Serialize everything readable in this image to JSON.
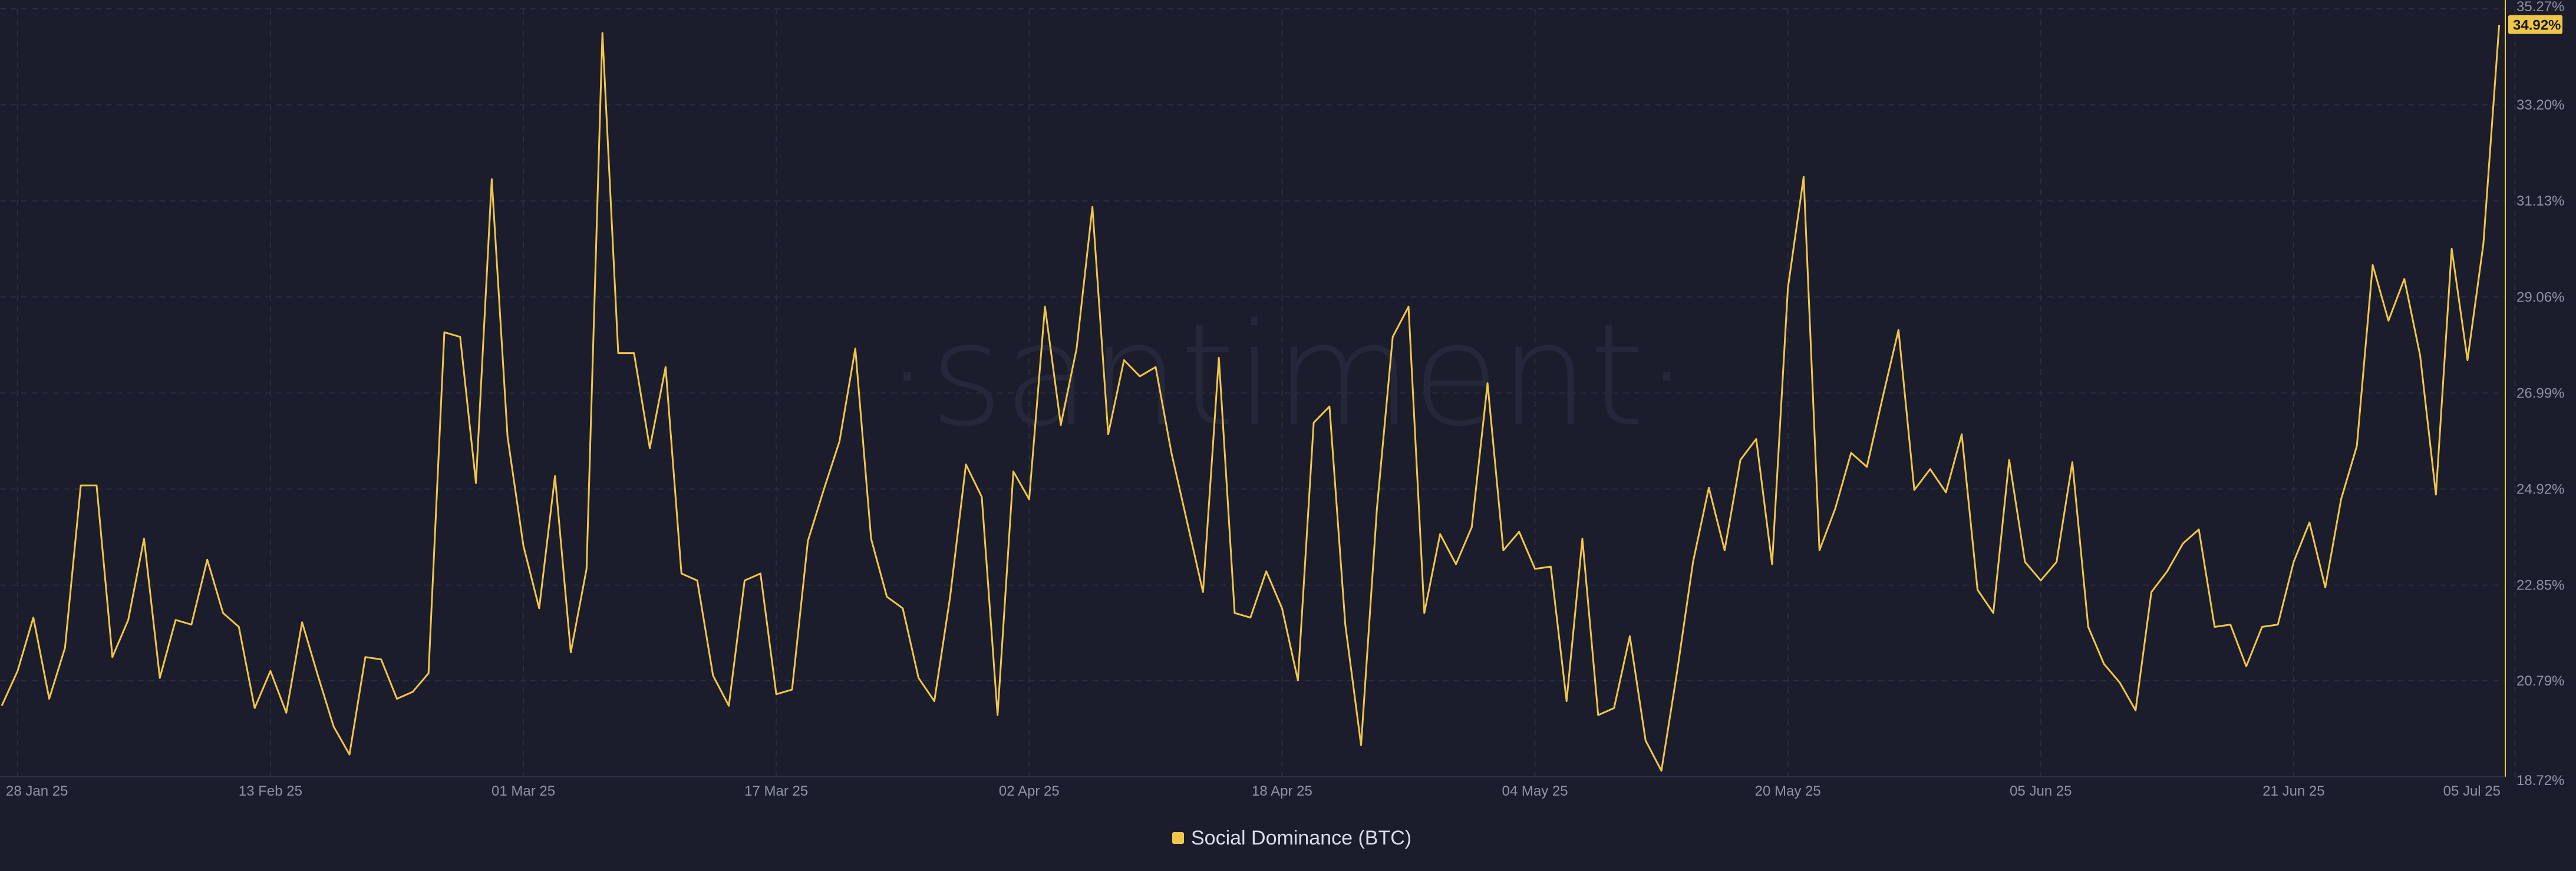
{
  "watermark": "·santiment·",
  "legend": {
    "label": "Social Dominance (BTC)"
  },
  "colors": {
    "background": "#1b1d2c",
    "line": "#f0c64a",
    "grid": "#2a2d40",
    "axis_text": "#8d93a8"
  },
  "chart_data": {
    "type": "line",
    "title": "",
    "xlabel": "",
    "ylabel": "",
    "grid": true,
    "legend_position": "bottom-center",
    "y_axis_side": "right",
    "ylim": [
      18.72,
      35.27
    ],
    "y_ticks": [
      "18.72%",
      "20.79%",
      "22.85%",
      "24.92%",
      "26.99%",
      "29.06%",
      "31.13%",
      "33.20%",
      "35.27%"
    ],
    "x_ticks": [
      "28 Jan 25",
      "13 Feb 25",
      "01 Mar 25",
      "17 Mar 25",
      "02 Apr 25",
      "18 Apr 25",
      "04 May 25",
      "20 May 25",
      "05 Jun 25",
      "21 Jun 25",
      "05 Jul 25"
    ],
    "x_start": "2025-01-27",
    "last_value_label": "34.92%",
    "series": [
      {
        "name": "Social Dominance (BTC)",
        "values": [
          20.25,
          21.0,
          22.15,
          20.4,
          21.5,
          25.0,
          25.0,
          21.3,
          22.1,
          23.85,
          20.85,
          22.1,
          22.0,
          23.4,
          22.25,
          21.95,
          20.2,
          21.0,
          20.1,
          22.05,
          20.9,
          19.8,
          19.2,
          21.3,
          21.25,
          20.4,
          20.55,
          20.95,
          28.3,
          28.2,
          25.05,
          31.6,
          26.05,
          23.7,
          22.35,
          25.2,
          21.4,
          23.2,
          34.75,
          27.85,
          27.85,
          25.8,
          27.55,
          23.1,
          22.95,
          20.9,
          20.25,
          22.95,
          23.1,
          20.5,
          20.6,
          23.8,
          24.9,
          25.95,
          27.95,
          23.85,
          22.6,
          22.35,
          20.85,
          20.35,
          22.6,
          25.45,
          24.75,
          20.05,
          25.3,
          24.7,
          28.85,
          26.3,
          27.95,
          31.0,
          26.1,
          27.7,
          27.35,
          27.55,
          25.7,
          24.2,
          22.7,
          27.75,
          22.25,
          22.15,
          23.15,
          22.35,
          20.8,
          26.35,
          26.7,
          22.0,
          19.4,
          24.5,
          28.2,
          28.85,
          22.25,
          23.95,
          23.3,
          24.1,
          27.2,
          23.6,
          24.0,
          23.2,
          23.25,
          20.35,
          23.85,
          20.05,
          20.2,
          21.75,
          19.5,
          18.85,
          21.0,
          23.35,
          24.95,
          23.6,
          25.55,
          26.0,
          23.3,
          29.25,
          31.65,
          23.6,
          24.5,
          25.7,
          25.4,
          26.9,
          28.35,
          24.9,
          25.35,
          24.85,
          26.1,
          22.75,
          22.25,
          25.55,
          23.35,
          22.95,
          23.35,
          25.5,
          21.95,
          21.15,
          20.75,
          20.15,
          22.7,
          23.15,
          23.75,
          24.05,
          21.95,
          22.0,
          21.1,
          21.95,
          22.0,
          23.35,
          24.2,
          22.8,
          24.7,
          25.85,
          29.75,
          28.55,
          29.45,
          27.8,
          24.8,
          30.1,
          27.7,
          30.2,
          34.92
        ]
      }
    ]
  }
}
